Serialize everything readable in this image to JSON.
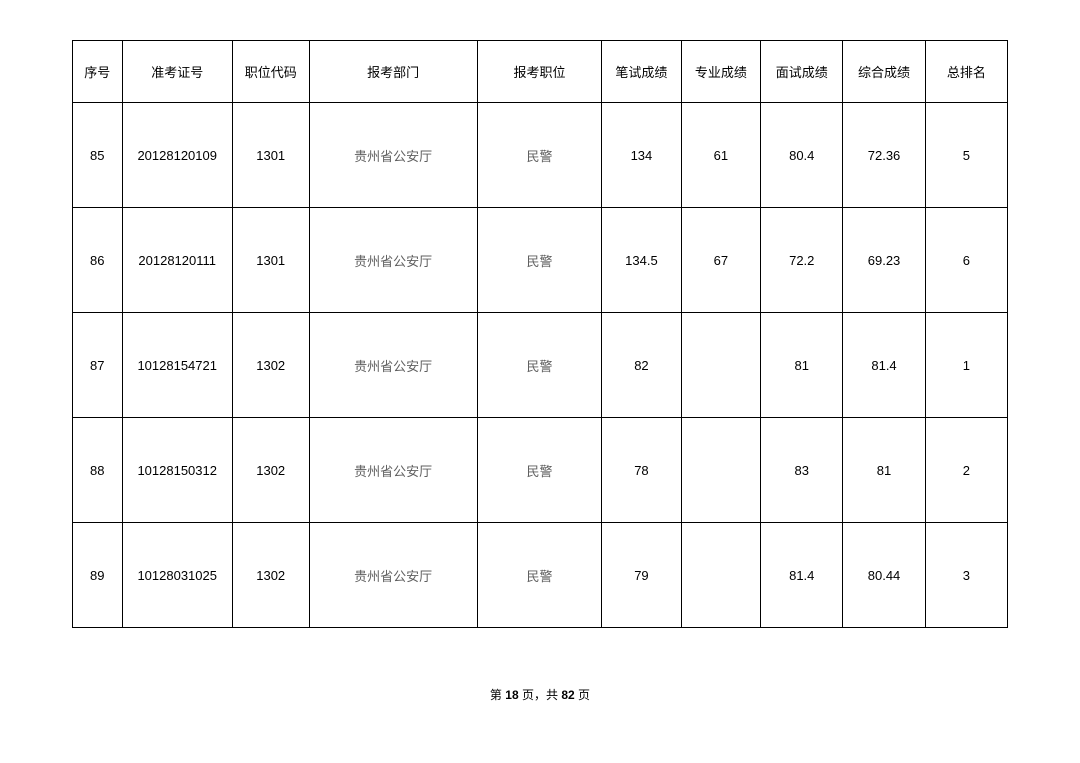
{
  "table": {
    "columns": [
      {
        "label": "序号",
        "width": "5.3%"
      },
      {
        "label": "准考证号",
        "width": "11.8%"
      },
      {
        "label": "职位代码",
        "width": "8.2%"
      },
      {
        "label": "报考部门",
        "width": "18.0%"
      },
      {
        "label": "报考职位",
        "width": "13.3%"
      },
      {
        "label": "笔试成绩",
        "width": "8.5%"
      },
      {
        "label": "专业成绩",
        "width": "8.5%"
      },
      {
        "label": "面试成绩",
        "width": "8.8%"
      },
      {
        "label": "综合成绩",
        "width": "8.8%"
      },
      {
        "label": "总排名",
        "width": "8.8%"
      }
    ],
    "rows": [
      {
        "seq": "85",
        "ticket": "20128120109",
        "poscode": "1301",
        "dept": "贵州省公安厅",
        "post": "民警",
        "written": "134",
        "pro": "61",
        "interview": "80.4",
        "total": "72.36",
        "rank": "5"
      },
      {
        "seq": "86",
        "ticket": "20128120111",
        "poscode": "1301",
        "dept": "贵州省公安厅",
        "post": "民警",
        "written": "134.5",
        "pro": "67",
        "interview": "72.2",
        "total": "69.23",
        "rank": "6"
      },
      {
        "seq": "87",
        "ticket": "10128154721",
        "poscode": "1302",
        "dept": "贵州省公安厅",
        "post": "民警",
        "written": "82",
        "pro": "",
        "interview": "81",
        "total": "81.4",
        "rank": "1"
      },
      {
        "seq": "88",
        "ticket": "10128150312",
        "poscode": "1302",
        "dept": "贵州省公安厅",
        "post": "民警",
        "written": "78",
        "pro": "",
        "interview": "83",
        "total": "81",
        "rank": "2"
      },
      {
        "seq": "89",
        "ticket": "10128031025",
        "poscode": "1302",
        "dept": "贵州省公安厅",
        "post": "民警",
        "written": "79",
        "pro": "",
        "interview": "81.4",
        "total": "80.44",
        "rank": "3"
      }
    ]
  },
  "footer": {
    "prefix": "第",
    "page_current": "18",
    "mid": "页，共",
    "page_total": "82",
    "suffix": "页"
  }
}
